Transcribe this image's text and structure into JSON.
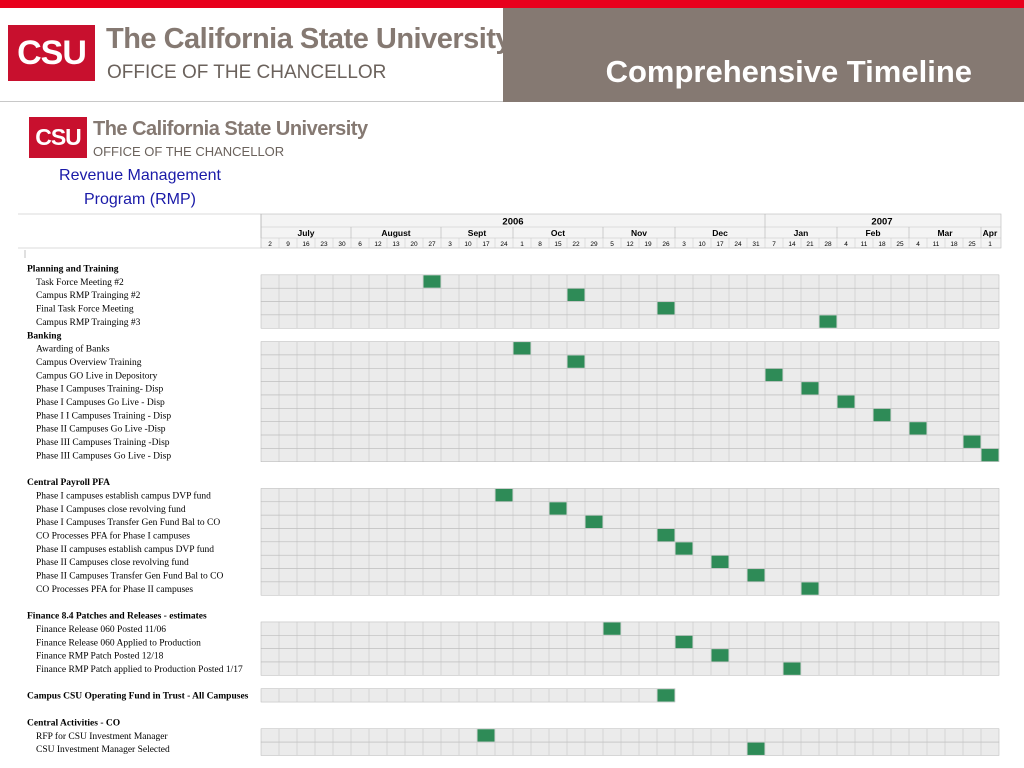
{
  "header": {
    "logo_mark": "CSU",
    "logo_name": "The California State University",
    "logo_office": "OFFICE OF THE CHANCELLOR",
    "slide_title": "Comprehensive Timeline"
  },
  "chart": {
    "logo_mark": "CSU",
    "logo_name": "The California State University",
    "logo_office": "OFFICE OF THE CHANCELLOR",
    "title_line1": "Revenue Management",
    "title_line2": "Program (RMP)"
  },
  "colors": {
    "accent_red": "#e8001c",
    "brand_red": "#c8102e",
    "header_gray": "#857972",
    "milestone_green": "#2e8b57",
    "cell_fill": "#ebebeb",
    "title_blue": "#1a1aa8"
  },
  "chart_data": {
    "type": "table",
    "years": [
      {
        "label": "2006",
        "start": 0,
        "span": 28
      },
      {
        "label": "2007",
        "start": 28,
        "span": 13
      }
    ],
    "months": [
      {
        "label": "July",
        "start": 0,
        "span": 5
      },
      {
        "label": "August",
        "start": 5,
        "span": 5
      },
      {
        "label": "Sept",
        "start": 10,
        "span": 4
      },
      {
        "label": "Oct",
        "start": 14,
        "span": 5
      },
      {
        "label": "Nov",
        "start": 19,
        "span": 4
      },
      {
        "label": "Dec",
        "start": 23,
        "span": 5
      },
      {
        "label": "Jan",
        "start": 28,
        "span": 4
      },
      {
        "label": "Feb",
        "start": 32,
        "span": 4
      },
      {
        "label": "Mar",
        "start": 36,
        "span": 4
      },
      {
        "label": "Apr",
        "start": 40,
        "span": 1
      }
    ],
    "weeks": [
      "2",
      "9",
      "16",
      "23",
      "30",
      "6",
      "12",
      "13",
      "20",
      "27",
      "3",
      "10",
      "17",
      "24",
      "1",
      "8",
      "15",
      "22",
      "29",
      "5",
      "12",
      "19",
      "26",
      "3",
      "10",
      "17",
      "24",
      "31",
      "7",
      "14",
      "21",
      "28",
      "4",
      "11",
      "18",
      "25",
      "4",
      "11",
      "18",
      "25",
      "1"
    ],
    "rows": [
      {
        "kind": "section",
        "label": "Planning and Training"
      },
      {
        "kind": "task",
        "label": "Task Force Meeting #2",
        "milestone": 9
      },
      {
        "kind": "task",
        "label": "Campus RMP Trainging #2",
        "milestone": 17
      },
      {
        "kind": "task",
        "label": "Final Task Force Meeting",
        "milestone": 22
      },
      {
        "kind": "task",
        "label": "Campus RMP Trainging #3",
        "milestone": 31
      },
      {
        "kind": "section",
        "label": "Banking"
      },
      {
        "kind": "task",
        "label": "Awarding of Banks",
        "milestone": 14
      },
      {
        "kind": "task",
        "label": "Campus Overview Training",
        "milestone": 17
      },
      {
        "kind": "task",
        "label": "Campus GO Live in Depository",
        "milestone": 28
      },
      {
        "kind": "task",
        "label": "Phase I Campuses Training- Disp",
        "milestone": 30
      },
      {
        "kind": "task",
        "label": "Phase I Campuses Go Live  - Disp",
        "milestone": 32
      },
      {
        "kind": "task",
        "label": "Phase I I Campuses Training - Disp",
        "milestone": 34
      },
      {
        "kind": "task",
        "label": "Phase II Campuses Go Live  -Disp",
        "milestone": 36
      },
      {
        "kind": "task",
        "label": "Phase III Campuses Training -Disp",
        "milestone": 39
      },
      {
        "kind": "task",
        "label": "Phase III Campuses Go Live  - Disp",
        "milestone": 40
      },
      {
        "kind": "blank",
        "label": ""
      },
      {
        "kind": "section",
        "label": "Central Payroll PFA"
      },
      {
        "kind": "task",
        "label": "Phase I campuses establish campus DVP fund",
        "milestone": 13
      },
      {
        "kind": "task",
        "label": "Phase I Campuses close revolving fund",
        "milestone": 16
      },
      {
        "kind": "task",
        "label": "Phase I Campuses Transfer Gen Fund Bal to CO",
        "milestone": 18
      },
      {
        "kind": "task",
        "label": "CO Processes PFA for Phase I campuses",
        "milestone": 22
      },
      {
        "kind": "task",
        "label": "Phase II campuses establish campus DVP fund",
        "milestone": 23
      },
      {
        "kind": "task",
        "label": "Phase II Campuses close revolving fund",
        "milestone": 25
      },
      {
        "kind": "task",
        "label": "Phase II Campuses Transfer Gen Fund Bal to CO",
        "milestone": 27
      },
      {
        "kind": "task",
        "label": "CO Processes PFA for Phase II campuses",
        "milestone": 30
      },
      {
        "kind": "blank",
        "label": ""
      },
      {
        "kind": "section",
        "label": "Finance 8.4 Patches and Releases - estimates"
      },
      {
        "kind": "task",
        "label": "Finance Release 060 Posted 11/06",
        "milestone": 19
      },
      {
        "kind": "task",
        "label": "Finance Release 060 Applied to Production",
        "milestone": 23
      },
      {
        "kind": "task",
        "label": "Finance RMP Patch Posted 12/18",
        "milestone": 25
      },
      {
        "kind": "task",
        "label": "Finance RMP Patch applied to Production Posted 1/17",
        "milestone": 29
      },
      {
        "kind": "blank",
        "label": ""
      },
      {
        "kind": "section",
        "label": "Campus CSU Operating Fund in Trust - All Campuses",
        "milestone": 22
      },
      {
        "kind": "blank",
        "label": ""
      },
      {
        "kind": "section",
        "label": "Central Activities - CO"
      },
      {
        "kind": "task",
        "label": "RFP for CSU Investment Manager",
        "milestone": 12
      },
      {
        "kind": "task",
        "label": "CSU Investment Manager Selected",
        "milestone": 27
      }
    ]
  }
}
